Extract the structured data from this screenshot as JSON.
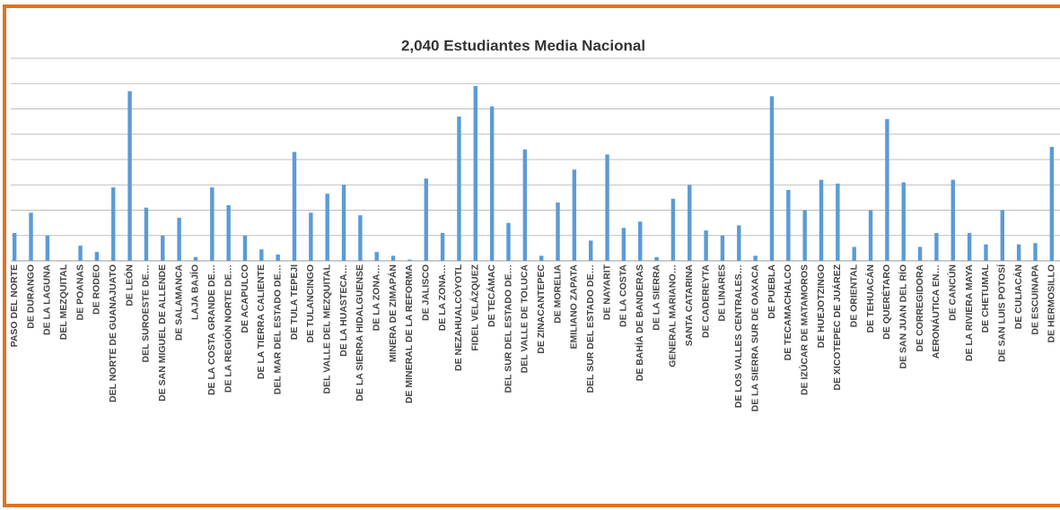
{
  "chart_data": {
    "type": "bar",
    "title": "2,040 Estudiantes Media Nacional",
    "categories": [
      "PASO DEL NORTE",
      "DE DURANGO",
      "DE LA LAGUNA",
      "DEL MEZQUITAL",
      "DE POANAS",
      "DE RODEO",
      "DEL NORTE DE GUANAJUATO",
      "DE LEÓN",
      "DEL SUROESTE DE…",
      "DE SAN MIGUEL DE ALLENDE",
      "DE SALAMANCA",
      "LAJA BAJÍO",
      "DE LA COSTA GRANDE DE…",
      "DE LA REGIÓN NORTE DE…",
      "DE ACAPULCO",
      "DE LA TIERRA CALIENTE",
      "DEL MAR DEL ESTADO DE…",
      "DE TULA TEPEJI",
      "DE TULANCINGO",
      "DEL VALLE DEL MEZQUITAL",
      "DE LA HUASTECA…",
      "DE LA SIERRA HIDALGUENSE",
      "DE LA ZONA…",
      "MINERA DE ZIMAPÁN",
      "DE MINERAL DE LA REFORMA",
      "DE JALISCO",
      "DE LA ZONA…",
      "DE NEZAHUALCÓYOTL",
      "FIDEL VELÁZQUEZ",
      "DE TECÁMAC",
      "DEL SUR DEL ESTADO DE…",
      "DEL VALLE DE TOLUCA",
      "DE ZINACANTEPEC",
      "DE MORELIA",
      "EMILIANO ZAPATA",
      "DEL SUR DEL ESTADO DE…",
      "DE NAYARIT",
      "DE LA COSTA",
      "DE BAHÍA DE BANDERAS",
      "DE LA SIERRA",
      "GENERAL MARIANO…",
      "SANTA CATARINA",
      "DE CADEREYTA",
      "DE LINARES",
      "DE LOS VALLES CENTRALES…",
      "DE LA SIERRA SUR DE OAXACA",
      "DE PUEBLA",
      "DE TECAMACHALCO",
      "DE IZÚCAR DE MATAMOROS",
      "DE HUEJOTZINGO",
      "DE XICOTEPEC DE JUÁREZ",
      "DE ORIENTAL",
      "DE TEHUACÁN",
      "DE QUERÉTARO",
      "DE SAN JUAN DEL RÍO",
      "DE CORREGIDORA",
      "AERONÁUTICA EN…",
      "DE CANCÚN",
      "DE LA RIVIERA MAYA",
      "DE CHETUMAL",
      "DE SAN LUIS POTOSÍ",
      "DE CULIACÁN",
      "DE ESCUINAPA",
      "DE HERMOSILLO"
    ],
    "values": [
      1.1,
      1.9,
      1.0,
      0,
      0.6,
      0.35,
      2.9,
      6.7,
      2.1,
      1.0,
      1.7,
      0.15,
      2.9,
      2.2,
      1.0,
      0.45,
      0.25,
      4.3,
      1.9,
      2.65,
      3.0,
      1.8,
      0.35,
      0.2,
      0.05,
      3.25,
      1.1,
      5.7,
      6.9,
      6.1,
      1.5,
      4.4,
      0.2,
      2.3,
      3.6,
      0.8,
      4.2,
      1.3,
      1.55,
      0.15,
      2.45,
      3.0,
      1.2,
      1.0,
      1.4,
      0.2,
      6.5,
      2.8,
      2.0,
      3.2,
      3.05,
      0.55,
      2.0,
      5.6,
      3.1,
      0.55,
      1.1,
      3.2,
      1.1,
      0.65,
      2.0,
      0.65,
      0.7,
      4.5
    ],
    "color": "#5b9bd5",
    "ylim": [
      0,
      8
    ],
    "yticks": [
      0,
      1,
      2,
      3,
      4,
      5,
      6,
      7,
      8
    ],
    "grid": true
  }
}
